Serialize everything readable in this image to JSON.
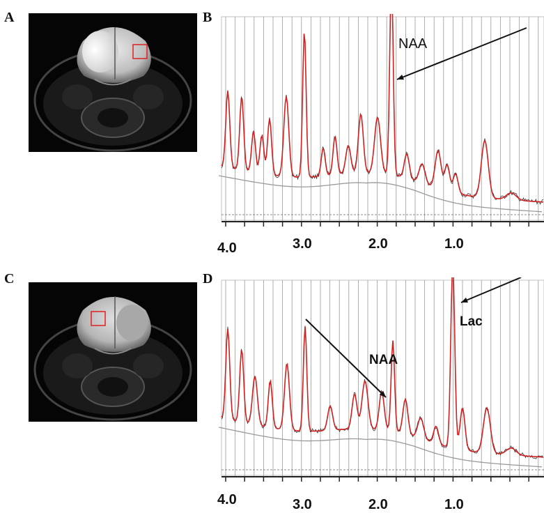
{
  "figure": {
    "panels": [
      {
        "letter": "A"
      },
      {
        "letter": "B",
        "annotations": [
          "NAA"
        ]
      },
      {
        "letter": "C"
      },
      {
        "letter": "D",
        "annotations": [
          "NAA",
          "Lac"
        ]
      }
    ],
    "x_ticks": [
      "4.0",
      "3.0",
      "2.0",
      "1.0"
    ]
  },
  "colors": {
    "fit_line": "#d02020",
    "raw_trace": "#333333",
    "baseline": "#999999",
    "roi_box": "#e02020",
    "grid": "#9a9a9a"
  },
  "icons": [
    "arrow-icon"
  ]
}
